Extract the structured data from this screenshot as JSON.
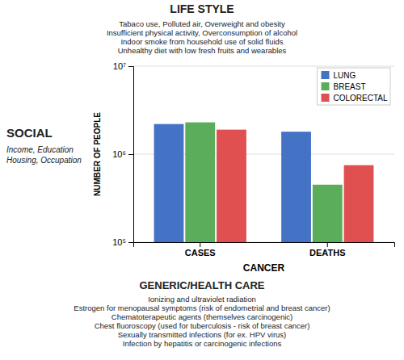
{
  "chart_data": {
    "type": "bar",
    "categories": [
      "CASES",
      "DEATHS"
    ],
    "series": [
      {
        "name": "LUNG",
        "color": "#4472C4",
        "values": [
          2200000,
          1800000
        ]
      },
      {
        "name": "BREAST",
        "color": "#5BAD5B",
        "values": [
          2300000,
          450000
        ]
      },
      {
        "name": "COLORECTAL",
        "color": "#E05050",
        "values": [
          1900000,
          750000
        ]
      }
    ],
    "xlabel": "CANCER",
    "ylabel": "NUMBER OF PEOPLE",
    "log": "y",
    "ylim": [
      100000,
      10000000
    ],
    "yticks": [
      {
        "value": 100000,
        "label": "10⁵"
      },
      {
        "value": 1000000,
        "label": "10⁶"
      },
      {
        "value": 10000000,
        "label": "10⁷"
      }
    ],
    "grid": true,
    "legend": "upper-right",
    "annotations": [
      [
        "SOCIAL",
        "Income, Education",
        "Housing, Occupation"
      ],
      [
        "LIFE STYLE",
        "Tabaco use, Polluted air, Overweight and obesity",
        "Insufficient physical activity, Overconsumption of alcohol",
        "Indoor smoke from household use of solid fluids",
        "Unhealthy diet with low fresh fruits and wearables"
      ],
      [
        "GENERIC/HEALTH CARE",
        "Ionizing and ultraviolet radiation",
        "Estrogen for menopausal symptoms (risk of endometrial and breast cancer)",
        "Chematoterapeutic agents (themselves carcinogenic)",
        "Chest fluoroscopy (used for tuberculosis - risk of breast cancer)",
        "Sexually transmitted infections (for ex. HPV virus)",
        "Infection by hepatitis or carcinogenic infections"
      ]
    ]
  }
}
